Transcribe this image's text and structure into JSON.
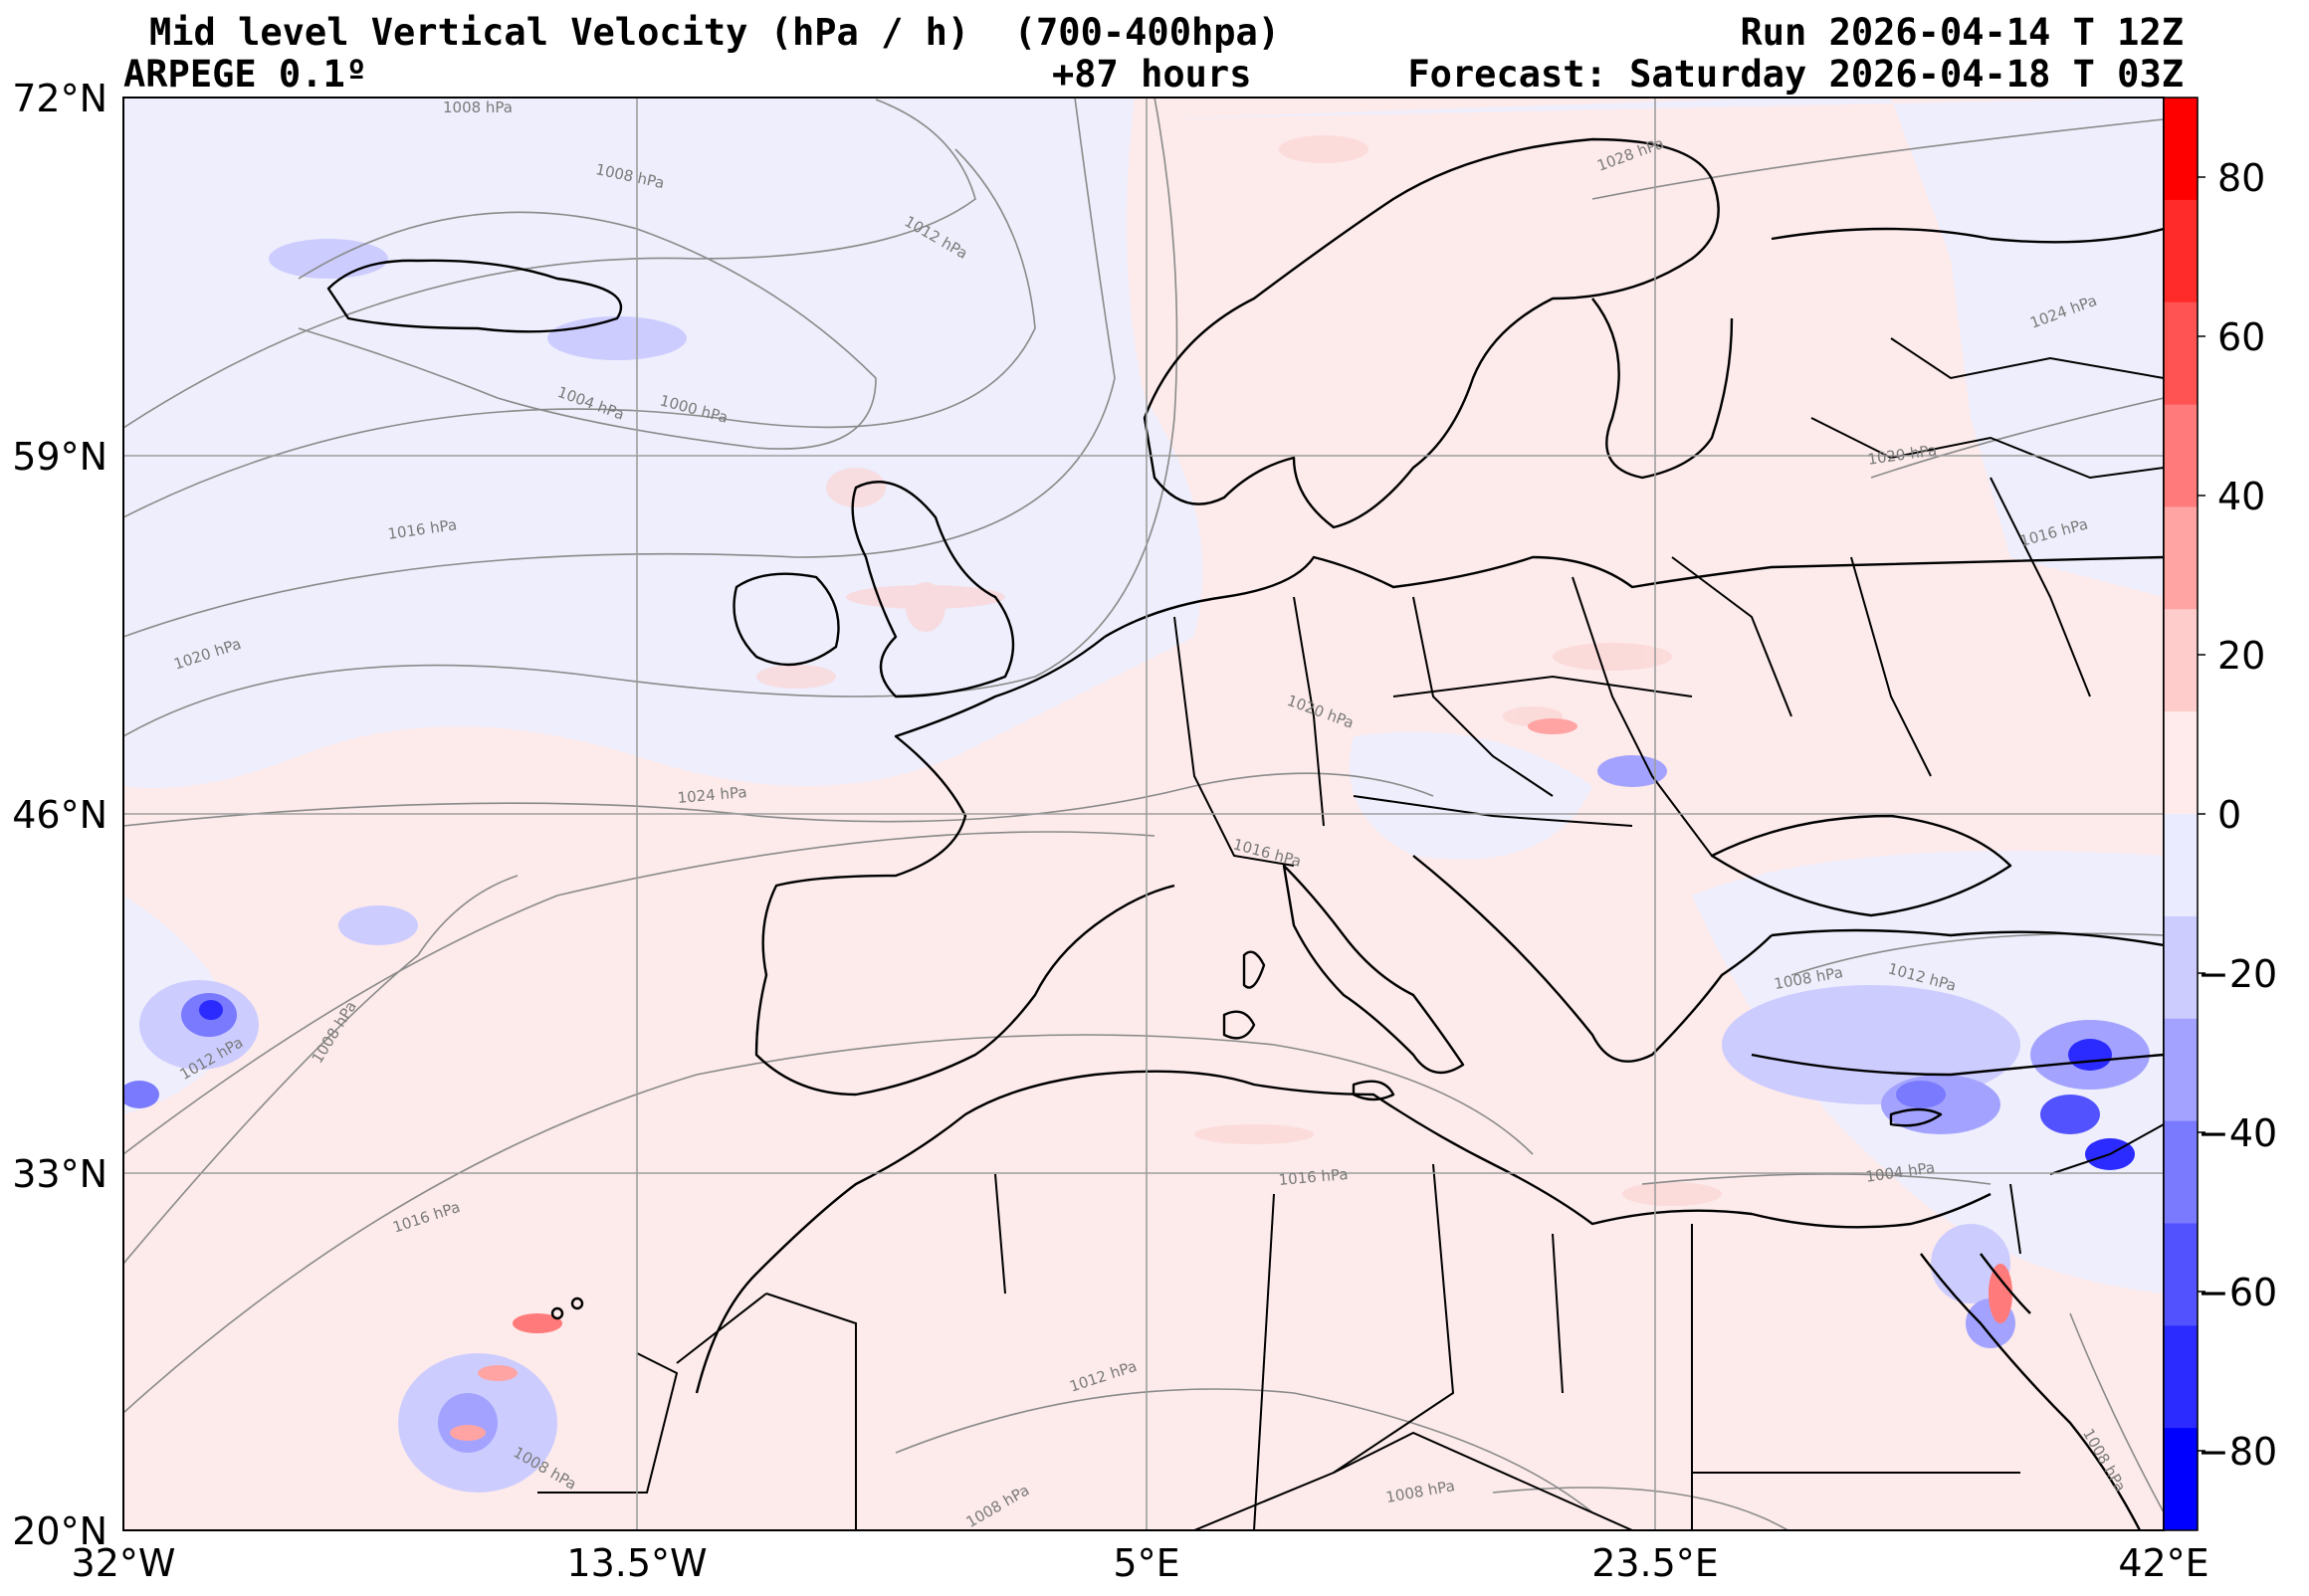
{
  "header": {
    "title": "Mid level Vertical Velocity (hPa / h)  (700-400hpa)",
    "model": "ARPEGE 0.1º",
    "lead_time": "+87 hours",
    "run": "Run 2026-04-14 T 12Z",
    "forecast": "Forecast: Saturday 2026-04-18 T 03Z"
  },
  "axes": {
    "lat_labels": [
      "72°N",
      "59°N",
      "46°N",
      "33°N",
      "20°N"
    ],
    "lon_labels": [
      "32°W",
      "13.5°W",
      "5°E",
      "23.5°E",
      "42°E"
    ]
  },
  "colorbar": {
    "tick_labels": [
      "80",
      "60",
      "40",
      "20",
      "0",
      "−20",
      "−40",
      "−60",
      "−80"
    ],
    "colors_top_to_bottom": [
      "#ff0000",
      "#ff2b2b",
      "#ff5252",
      "#ff7a7a",
      "#ffa3a3",
      "#ffcccc",
      "#ffebeb",
      "#ebebff",
      "#ccccff",
      "#a3a3ff",
      "#7a7aff",
      "#5252ff",
      "#2b2bff",
      "#0000ff"
    ],
    "range": [
      -90,
      90
    ]
  },
  "map": {
    "positive_color": "#fdeaea",
    "negative_color": "#eeeefc",
    "isobar_labels": [
      "1008 hPa",
      "1008 hPa",
      "1012 hPa",
      "1004 hPa",
      "1000 hPa",
      "1016 hPa",
      "1020 hPa",
      "1024 hPa",
      "1020 hPa",
      "1016 hPa",
      "1028 hPa",
      "1024 hPa",
      "1020 hPa",
      "1016 hPa",
      "1008 hPa",
      "1012 hPa",
      "1012 hPa",
      "1016 hPa",
      "1004 hPa",
      "1016 hPa",
      "1012 hPa",
      "1008 hPa",
      "1008 hPa",
      "1008 hPa",
      "1008 hPa",
      "1008 hPa"
    ]
  }
}
